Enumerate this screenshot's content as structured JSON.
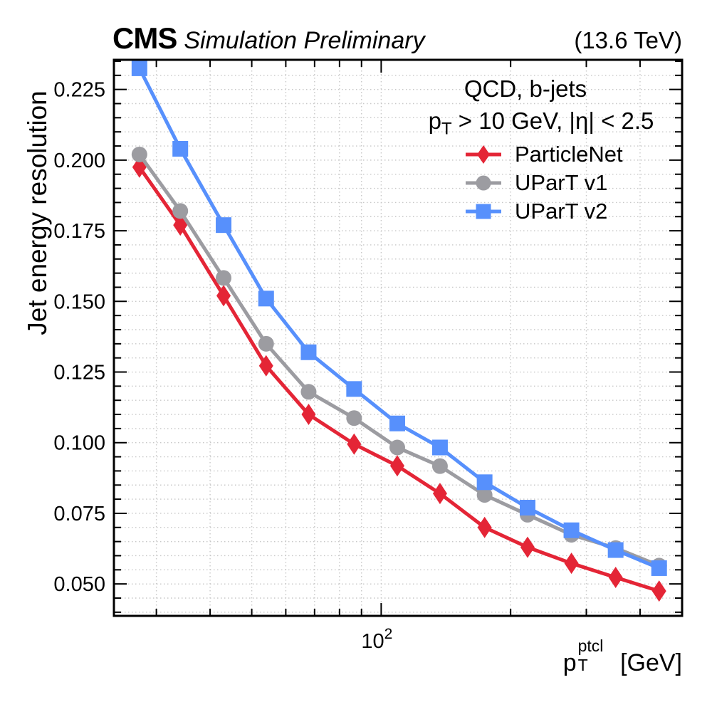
{
  "header": {
    "experiment": "CMS",
    "label": "Simulation Preliminary",
    "energy": "(13.6 TeV)"
  },
  "axes": {
    "y_label": "Jet energy resolution",
    "x_label": {
      "base": "p",
      "sub": "T",
      "sup": "ptcl",
      "unit": " [GeV]"
    },
    "y_ticks": [
      {
        "value": 0.225,
        "label": "0.225"
      },
      {
        "value": 0.2,
        "label": "0.200"
      },
      {
        "value": 0.175,
        "label": "0.175"
      },
      {
        "value": 0.15,
        "label": "0.150"
      },
      {
        "value": 0.125,
        "label": "0.125"
      },
      {
        "value": 0.1,
        "label": "0.100"
      },
      {
        "value": 0.075,
        "label": "0.075"
      },
      {
        "value": 0.05,
        "label": "0.050"
      }
    ],
    "x_major_ticks": [
      {
        "value": 100,
        "base": "10",
        "sup": "2"
      }
    ],
    "x_minor_ticks": [
      30,
      40,
      50,
      60,
      70,
      80,
      90,
      200,
      300,
      400,
      500
    ]
  },
  "legend": {
    "title": "QCD, b-jets",
    "subtitle": {
      "base": "p",
      "sub": "T",
      "rest": " > 10 GeV, |η| < 2.5"
    },
    "entries": [
      {
        "label": "ParticleNet",
        "color": "#e42536",
        "marker": "diamond"
      },
      {
        "label": "UParT v1",
        "color": "#9c9ca1",
        "marker": "circle"
      },
      {
        "label": "UParT v2",
        "color": "#5790fc",
        "marker": "square"
      }
    ]
  },
  "chart_data": {
    "type": "line",
    "title": "QCD, b-jets",
    "subtitle": "pT > 10 GeV, |eta| < 2.5",
    "xlabel": "pT^ptcl [GeV]",
    "ylabel": "Jet energy resolution",
    "x_scale": "log",
    "xlim": [
      23.9,
      501
    ],
    "ylim": [
      0.0387,
      0.2355
    ],
    "grid": true,
    "legend_position": "top-right",
    "y_major_step": 0.025,
    "y_minor_step": 0.005,
    "x": [
      27.4,
      34.1,
      43.0,
      54.0,
      67.8,
      86.5,
      109,
      137,
      174,
      219,
      277,
      351,
      443
    ],
    "series": [
      {
        "name": "ParticleNet",
        "color": "#e42536",
        "marker": "diamond",
        "values": [
          0.1975,
          0.177,
          0.152,
          0.1272,
          0.11,
          0.0995,
          0.0918,
          0.082,
          0.07,
          0.063,
          0.0573,
          0.0523,
          0.0475
        ]
      },
      {
        "name": "UParT v1",
        "color": "#9c9ca1",
        "marker": "circle",
        "values": [
          0.202,
          0.182,
          0.1583,
          0.135,
          0.118,
          0.1087,
          0.0983,
          0.0917,
          0.0815,
          0.0745,
          0.0674,
          0.0627,
          0.0565
        ]
      },
      {
        "name": "UParT v2",
        "color": "#5790fc",
        "marker": "square",
        "values": [
          0.2325,
          0.204,
          0.177,
          0.151,
          0.132,
          0.119,
          0.1068,
          0.0983,
          0.086,
          0.077,
          0.069,
          0.062,
          0.0556
        ]
      }
    ],
    "styles": {
      "grid_color": "#c8c8c8",
      "frame_color": "#000000",
      "line_width": 5
    }
  }
}
